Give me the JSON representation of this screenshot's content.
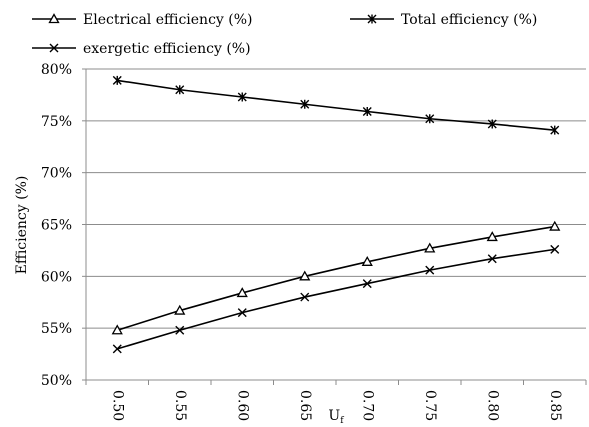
{
  "chart_data": {
    "type": "line",
    "title": "",
    "xlabel": "U",
    "xlabel_subscript": "f",
    "ylabel": "Efficiency (%)",
    "categories": [
      "0.50",
      "0.55",
      "0.60",
      "0.65",
      "0.70",
      "0.75",
      "0.80",
      "0.85"
    ],
    "ylim": [
      50,
      80
    ],
    "yticks": [
      50,
      55,
      60,
      65,
      70,
      75,
      80
    ],
    "ytick_labels": [
      "50%",
      "55%",
      "60%",
      "65%",
      "70%",
      "75%",
      "80%"
    ],
    "grid": "horizontal",
    "legend_position": "top",
    "series": [
      {
        "name": "Electrical efficiency (%)",
        "marker": "triangle",
        "color": "#000000",
        "values": [
          54.8,
          56.7,
          58.4,
          60.0,
          61.4,
          62.7,
          63.8,
          64.8
        ]
      },
      {
        "name": "Total efficiency (%)",
        "marker": "star",
        "color": "#000000",
        "values": [
          78.9,
          78.0,
          77.3,
          76.6,
          75.9,
          75.2,
          74.7,
          74.1
        ]
      },
      {
        "name": "exergetic efficiency (%)",
        "marker": "x",
        "color": "#000000",
        "values": [
          53.0,
          54.8,
          56.5,
          58.0,
          59.3,
          60.6,
          61.7,
          62.6
        ]
      }
    ]
  }
}
